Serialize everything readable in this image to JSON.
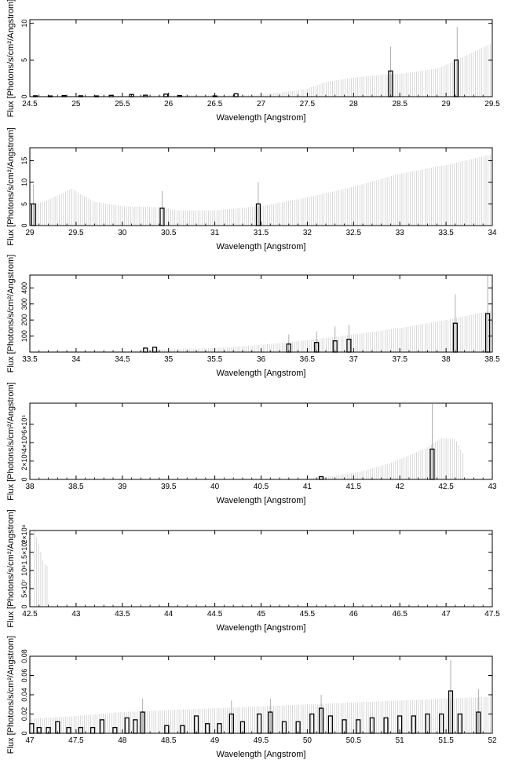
{
  "chart_data": [
    {
      "type": "histogram",
      "xlabel": "Wavelength [Angstrom]",
      "ylabel": "Flux [Photons/s/cm²/Angstrom]",
      "xlim": [
        24.5,
        29.5
      ],
      "ylim": [
        0,
        10.5
      ],
      "xticks": [
        "24.5",
        "25",
        "25.5",
        "26",
        "26.5",
        "27",
        "27.5",
        "28",
        "28.5",
        "29",
        "29.5"
      ],
      "yticks": [
        "0",
        "5",
        "10"
      ],
      "bins": [
        {
          "x": 24.56,
          "v": 0.12
        },
        {
          "x": 24.72,
          "v": 0.1
        },
        {
          "x": 24.87,
          "v": 0.15
        },
        {
          "x": 25.05,
          "v": 0.12
        },
        {
          "x": 25.22,
          "v": 0.1
        },
        {
          "x": 25.38,
          "v": 0.18
        },
        {
          "x": 25.6,
          "v": 0.3
        },
        {
          "x": 25.75,
          "v": 0.2
        },
        {
          "x": 25.97,
          "v": 0.35
        },
        {
          "x": 26.12,
          "v": 0.15
        },
        {
          "x": 26.5,
          "v": 0.1
        },
        {
          "x": 26.73,
          "v": 0.4
        },
        {
          "x": 28.4,
          "v": 3.5
        },
        {
          "x": 29.11,
          "v": 5.0
        }
      ],
      "upper_limits": [
        {
          "x": 24.5,
          "v": 0.1
        },
        {
          "x": 25.0,
          "v": 0.1
        },
        {
          "x": 25.5,
          "v": 0.15
        },
        {
          "x": 26.0,
          "v": 0.2
        },
        {
          "x": 26.5,
          "v": 0.2
        },
        {
          "x": 27.0,
          "v": 0.3
        },
        {
          "x": 27.3,
          "v": 0.7
        },
        {
          "x": 27.5,
          "v": 1.1
        },
        {
          "x": 27.7,
          "v": 2.0
        },
        {
          "x": 28.0,
          "v": 2.6
        },
        {
          "x": 28.3,
          "v": 3.0
        },
        {
          "x": 28.5,
          "v": 3.1
        },
        {
          "x": 28.9,
          "v": 3.8
        },
        {
          "x": 29.2,
          "v": 5.5
        },
        {
          "x": 29.5,
          "v": 7.3
        }
      ],
      "spikes": [
        {
          "x": 28.4,
          "v": 6.8
        },
        {
          "x": 29.12,
          "v": 9.5
        }
      ]
    },
    {
      "type": "histogram",
      "xlabel": "Wavelength [Angstrom]",
      "ylabel": "Flux [Photons/s/cm²/Angstrom]",
      "xlim": [
        29,
        34
      ],
      "ylim": [
        0,
        18
      ],
      "xticks": [
        "29",
        "29.5",
        "30",
        "30.5",
        "31",
        "31.5",
        "32",
        "32.5",
        "33",
        "33.5",
        "34"
      ],
      "yticks": [
        "0",
        "5",
        "10",
        "15"
      ],
      "bins": [
        {
          "x": 29.04,
          "v": 5.0
        },
        {
          "x": 30.43,
          "v": 4.0
        },
        {
          "x": 31.47,
          "v": 5.0
        }
      ],
      "upper_limits": [
        {
          "x": 29.0,
          "v": 4.5
        },
        {
          "x": 29.2,
          "v": 6.0
        },
        {
          "x": 29.45,
          "v": 8.5
        },
        {
          "x": 29.7,
          "v": 5.5
        },
        {
          "x": 30.0,
          "v": 4.5
        },
        {
          "x": 30.45,
          "v": 4.2
        },
        {
          "x": 30.6,
          "v": 3.5
        },
        {
          "x": 31.0,
          "v": 3.5
        },
        {
          "x": 31.5,
          "v": 4.5
        },
        {
          "x": 32.0,
          "v": 6.5
        },
        {
          "x": 32.5,
          "v": 9.0
        },
        {
          "x": 33.0,
          "v": 12.0
        },
        {
          "x": 33.5,
          "v": 14.0
        },
        {
          "x": 34.0,
          "v": 16.5
        }
      ],
      "spikes": [
        {
          "x": 29.04,
          "v": 9.5
        },
        {
          "x": 30.43,
          "v": 8.0
        },
        {
          "x": 31.47,
          "v": 10.0
        }
      ]
    },
    {
      "type": "histogram",
      "xlabel": "Wavelength [Angstrom]",
      "ylabel": "Flux [Photons/s/cm²/Angstrom]",
      "xlim": [
        33.5,
        38.5
      ],
      "ylim": [
        0,
        480
      ],
      "xticks": [
        "33.5",
        "34",
        "34.5",
        "35",
        "35.5",
        "36",
        "36.5",
        "37",
        "37.5",
        "38",
        "38.5"
      ],
      "yticks": [
        "100",
        "200",
        "300",
        "400"
      ],
      "bins": [
        {
          "x": 34.75,
          "v": 25
        },
        {
          "x": 34.85,
          "v": 30
        },
        {
          "x": 36.3,
          "v": 50
        },
        {
          "x": 36.6,
          "v": 60
        },
        {
          "x": 36.8,
          "v": 70
        },
        {
          "x": 36.95,
          "v": 80
        },
        {
          "x": 38.1,
          "v": 180
        },
        {
          "x": 38.45,
          "v": 240
        }
      ],
      "upper_limits": [
        {
          "x": 33.5,
          "v": 3
        },
        {
          "x": 34.5,
          "v": 8
        },
        {
          "x": 35.0,
          "v": 18
        },
        {
          "x": 35.5,
          "v": 25
        },
        {
          "x": 36.0,
          "v": 45
        },
        {
          "x": 36.5,
          "v": 75
        },
        {
          "x": 37.0,
          "v": 110
        },
        {
          "x": 37.5,
          "v": 150
        },
        {
          "x": 38.0,
          "v": 200
        },
        {
          "x": 38.5,
          "v": 260
        }
      ],
      "spikes": [
        {
          "x": 36.3,
          "v": 110
        },
        {
          "x": 36.6,
          "v": 130
        },
        {
          "x": 36.8,
          "v": 160
        },
        {
          "x": 36.95,
          "v": 170
        },
        {
          "x": 38.1,
          "v": 360
        },
        {
          "x": 38.45,
          "v": 480
        }
      ]
    },
    {
      "type": "histogram",
      "xlabel": "Wavelength [Angstrom]",
      "ylabel": "Flux [Photons/s/cm²/Angstrom]",
      "xlim": [
        38,
        43
      ],
      "ylim": [
        0,
        830000
      ],
      "xticks": [
        "38",
        "38.5",
        "39",
        "39.5",
        "40",
        "40.5",
        "41",
        "41.5",
        "42",
        "42.5",
        "43"
      ],
      "yticks": [
        "0",
        "2×10⁵",
        "4×10⁵",
        "6×10⁵"
      ],
      "bins": [
        {
          "x": 41.15,
          "v": 30000
        },
        {
          "x": 42.35,
          "v": 330000
        }
      ],
      "upper_limits": [
        {
          "x": 41.0,
          "v": 10000
        },
        {
          "x": 41.3,
          "v": 40000
        },
        {
          "x": 41.6,
          "v": 90000
        },
        {
          "x": 41.9,
          "v": 180000
        },
        {
          "x": 42.1,
          "v": 260000
        },
        {
          "x": 42.3,
          "v": 350000
        },
        {
          "x": 42.45,
          "v": 450000
        },
        {
          "x": 42.6,
          "v": 440000
        },
        {
          "x": 42.7,
          "v": 250000
        }
      ],
      "spikes": [
        {
          "x": 42.35,
          "v": 820000
        }
      ]
    },
    {
      "type": "histogram",
      "xlabel": "Wavelength [Angstrom]",
      "ylabel": "Flux [Photons/s/cm²/Angstrom]",
      "xlim": [
        42.5,
        47.5
      ],
      "ylim": [
        0,
        210000000
      ],
      "xticks": [
        "42.5",
        "43",
        "43.5",
        "44",
        "44.5",
        "45",
        "45.5",
        "46",
        "46.5",
        "47",
        "47.5"
      ],
      "yticks": [
        "0",
        "5×10⁷",
        "10⁸",
        "1.5×10⁸",
        "2×10⁸"
      ],
      "bins": [],
      "upper_limits": [
        {
          "x": 42.55,
          "v": 210000000
        },
        {
          "x": 42.6,
          "v": 170000000
        },
        {
          "x": 42.65,
          "v": 120000000
        },
        {
          "x": 42.7,
          "v": 110000000
        }
      ],
      "spikes": []
    },
    {
      "type": "histogram",
      "xlabel": "Wavelength [Angstrom]",
      "ylabel": "Flux [Photons/s/cm²/Angstrom]",
      "xlim": [
        47,
        52
      ],
      "ylim": [
        0,
        0.08
      ],
      "xticks": [
        "47",
        "47.5",
        "48",
        "48.5",
        "49",
        "49.5",
        "50",
        "50.5",
        "51",
        "51.5",
        "52"
      ],
      "yticks": [
        "0",
        "0.02",
        "0.04",
        "0.06",
        "0.08"
      ],
      "bins": [
        {
          "x": 47.02,
          "v": 0.01
        },
        {
          "x": 47.1,
          "v": 0.006
        },
        {
          "x": 47.2,
          "v": 0.006
        },
        {
          "x": 47.3,
          "v": 0.012
        },
        {
          "x": 47.42,
          "v": 0.006
        },
        {
          "x": 47.55,
          "v": 0.006
        },
        {
          "x": 47.68,
          "v": 0.006
        },
        {
          "x": 47.78,
          "v": 0.014
        },
        {
          "x": 47.92,
          "v": 0.006
        },
        {
          "x": 48.05,
          "v": 0.016
        },
        {
          "x": 48.14,
          "v": 0.014
        },
        {
          "x": 48.22,
          "v": 0.022
        },
        {
          "x": 48.48,
          "v": 0.008
        },
        {
          "x": 48.65,
          "v": 0.008
        },
        {
          "x": 48.8,
          "v": 0.018
        },
        {
          "x": 48.92,
          "v": 0.01
        },
        {
          "x": 49.05,
          "v": 0.01
        },
        {
          "x": 49.18,
          "v": 0.02
        },
        {
          "x": 49.3,
          "v": 0.012
        },
        {
          "x": 49.48,
          "v": 0.02
        },
        {
          "x": 49.6,
          "v": 0.022
        },
        {
          "x": 49.75,
          "v": 0.012
        },
        {
          "x": 49.9,
          "v": 0.012
        },
        {
          "x": 50.05,
          "v": 0.02
        },
        {
          "x": 50.15,
          "v": 0.026
        },
        {
          "x": 50.25,
          "v": 0.018
        },
        {
          "x": 50.4,
          "v": 0.014
        },
        {
          "x": 50.55,
          "v": 0.014
        },
        {
          "x": 50.7,
          "v": 0.016
        },
        {
          "x": 50.85,
          "v": 0.016
        },
        {
          "x": 51.0,
          "v": 0.018
        },
        {
          "x": 51.15,
          "v": 0.018
        },
        {
          "x": 51.3,
          "v": 0.02
        },
        {
          "x": 51.45,
          "v": 0.02
        },
        {
          "x": 51.55,
          "v": 0.044
        },
        {
          "x": 51.65,
          "v": 0.02
        },
        {
          "x": 51.85,
          "v": 0.022
        }
      ],
      "upper_limits": [
        {
          "x": 47.0,
          "v": 0.015
        },
        {
          "x": 47.5,
          "v": 0.018
        },
        {
          "x": 48.0,
          "v": 0.022
        },
        {
          "x": 48.5,
          "v": 0.024
        },
        {
          "x": 49.0,
          "v": 0.026
        },
        {
          "x": 49.5,
          "v": 0.028
        },
        {
          "x": 50.0,
          "v": 0.03
        },
        {
          "x": 50.5,
          "v": 0.032
        },
        {
          "x": 51.0,
          "v": 0.034
        },
        {
          "x": 51.5,
          "v": 0.036
        },
        {
          "x": 52.0,
          "v": 0.038
        }
      ],
      "spikes": [
        {
          "x": 48.22,
          "v": 0.036
        },
        {
          "x": 49.18,
          "v": 0.034
        },
        {
          "x": 49.6,
          "v": 0.036
        },
        {
          "x": 50.15,
          "v": 0.04
        },
        {
          "x": 51.55,
          "v": 0.076
        },
        {
          "x": 51.85,
          "v": 0.046
        }
      ]
    }
  ]
}
